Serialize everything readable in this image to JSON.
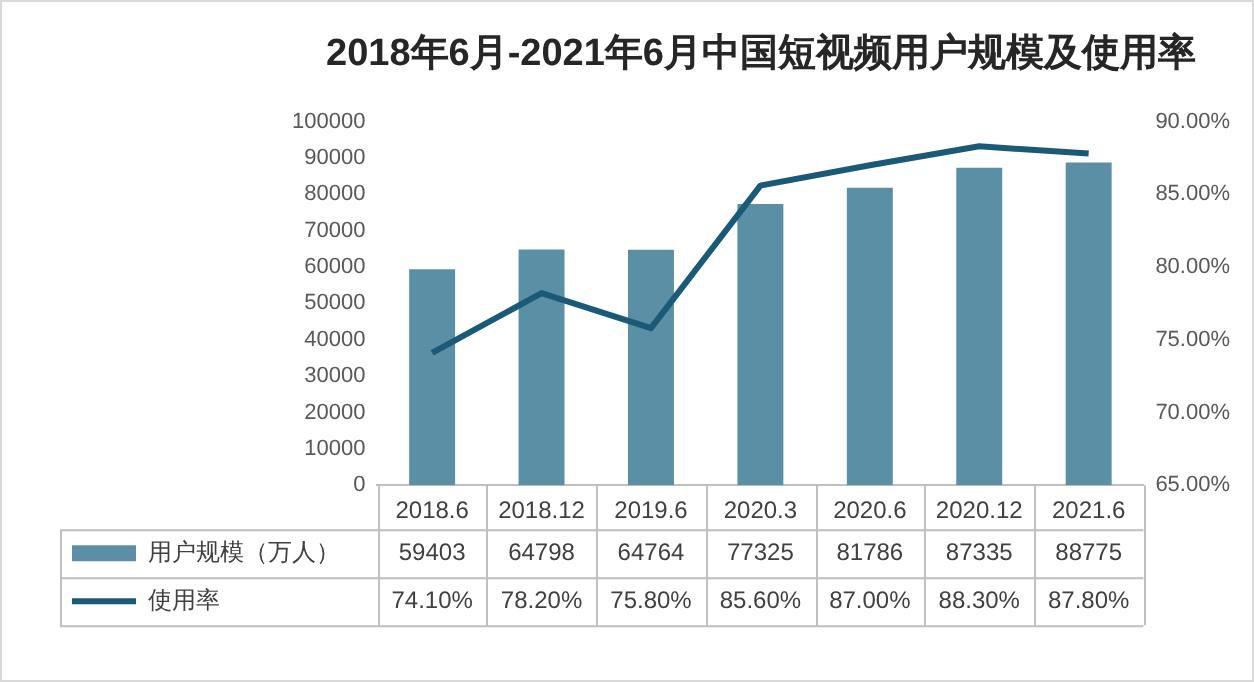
{
  "chart_data": {
    "type": "bar",
    "title": "2018年6月-2021年6月中国短视频用户规模及使用率",
    "categories": [
      "2018.6",
      "2018.12",
      "2019.6",
      "2020.3",
      "2020.6",
      "2020.12",
      "2021.6"
    ],
    "series": [
      {
        "name": "用户规模（万人）",
        "color": "#5b8fa6",
        "values": [
          59403,
          64798,
          64764,
          77325,
          81786,
          87335,
          88775
        ],
        "value_labels": [
          "59403",
          "64798",
          "64764",
          "77325",
          "81786",
          "87335",
          "88775"
        ]
      },
      {
        "name": "使用率",
        "type": "line",
        "axis": "y2",
        "color": "#1a5a78",
        "values": [
          74.1,
          78.2,
          75.8,
          85.6,
          87.0,
          88.3,
          87.8
        ],
        "value_labels": [
          "74.10%",
          "78.20%",
          "75.80%",
          "85.60%",
          "87.00%",
          "88.30%",
          "87.80%"
        ]
      }
    ],
    "ylim": [
      0,
      100000
    ],
    "yticks": [
      0,
      10000,
      20000,
      30000,
      40000,
      50000,
      60000,
      70000,
      80000,
      90000,
      100000
    ],
    "y2lim": [
      65,
      90
    ],
    "y2ticks": [
      {
        "value": 65,
        "label": "65.00%"
      },
      {
        "value": 70,
        "label": "70.00%"
      },
      {
        "value": 75,
        "label": "75.00%"
      },
      {
        "value": 80,
        "label": "80.00%"
      },
      {
        "value": 85,
        "label": "85.00%"
      },
      {
        "value": 90,
        "label": "90.00%"
      }
    ],
    "grid": false,
    "legend": "bottom",
    "marker": "none",
    "line_style": "solid"
  }
}
